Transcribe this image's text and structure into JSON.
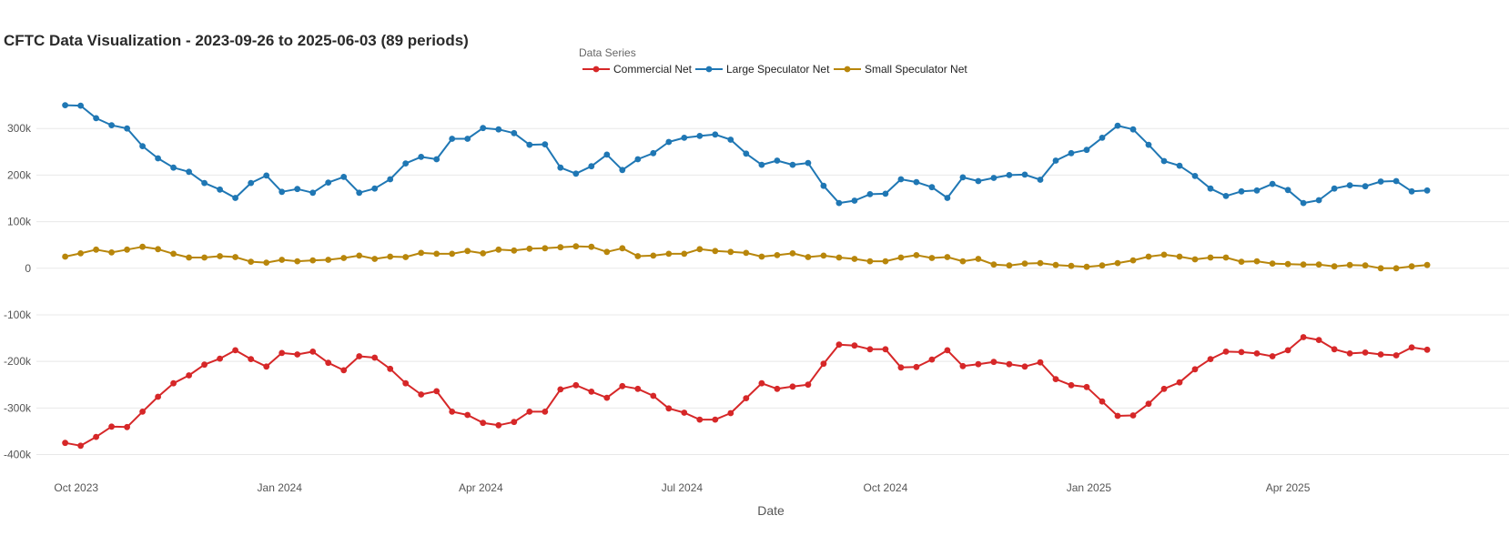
{
  "chart_data": {
    "type": "line",
    "title": "CFTC Data Visualization - 2023-09-26 to 2025-06-03 (89 periods)",
    "xlabel": "Date",
    "ylabel": "",
    "ylim": [
      -440000,
      400000
    ],
    "xlim": [
      "2023-09-13",
      "2025-07-10"
    ],
    "grid": true,
    "legend": {
      "title": "Data Series",
      "placement": "top-center"
    },
    "x_ticks": [
      {
        "date": "2023-10-01",
        "label": "Oct 2023"
      },
      {
        "date": "2024-01-01",
        "label": "Jan 2024"
      },
      {
        "date": "2024-04-01",
        "label": "Apr 2024"
      },
      {
        "date": "2024-07-01",
        "label": "Jul 2024"
      },
      {
        "date": "2024-10-01",
        "label": "Oct 2024"
      },
      {
        "date": "2025-01-01",
        "label": "Jan 2025"
      },
      {
        "date": "2025-04-01",
        "label": "Apr 2025"
      }
    ],
    "y_ticks": [
      {
        "value": 300000,
        "label": "300k"
      },
      {
        "value": 200000,
        "label": "200k"
      },
      {
        "value": 100000,
        "label": "100k"
      },
      {
        "value": 0,
        "label": "0"
      },
      {
        "value": -100000,
        "label": "-100k"
      },
      {
        "value": -200000,
        "label": "-200k"
      },
      {
        "value": -300000,
        "label": "-300k"
      },
      {
        "value": -400000,
        "label": "-400k"
      }
    ],
    "x_start": "2023-09-26",
    "x_interval_days": 7,
    "series": [
      {
        "name": "Commercial Net",
        "color": "#d62728",
        "values": [
          -375000,
          -381000,
          -362000,
          -340000,
          -341000,
          -308000,
          -276000,
          -247000,
          -230000,
          -207000,
          -194000,
          -176000,
          -195000,
          -211000,
          -182000,
          -185000,
          -179000,
          -203000,
          -219000,
          -189000,
          -192000,
          -216000,
          -247000,
          -271000,
          -264000,
          -308000,
          -315000,
          -332000,
          -337000,
          -330000,
          -308000,
          -308000,
          -260000,
          -251000,
          -265000,
          -278000,
          -253000,
          -259000,
          -274000,
          -301000,
          -310000,
          -325000,
          -325000,
          -311000,
          -279000,
          -247000,
          -259000,
          -254000,
          -250000,
          -205000,
          -164000,
          -166000,
          -174000,
          -174000,
          -213000,
          -212000,
          -196000,
          -176000,
          -210000,
          -206000,
          -201000,
          -206000,
          -211000,
          -202000,
          -238000,
          -251000,
          -255000,
          -286000,
          -317000,
          -316000,
          -291000,
          -259000,
          -245000,
          -217000,
          -195000,
          -179000,
          -180000,
          -183000,
          -189000,
          -176000,
          -148000,
          -154000,
          -174000,
          -183000,
          -181000,
          -185000,
          -187000,
          -170000,
          -175000
        ]
      },
      {
        "name": "Large Speculator Net",
        "color": "#1f77b4",
        "values": [
          350000,
          349000,
          322000,
          307000,
          300000,
          262000,
          236000,
          216000,
          207000,
          183000,
          169000,
          151000,
          183000,
          199000,
          164000,
          170000,
          162000,
          184000,
          196000,
          162000,
          171000,
          191000,
          225000,
          239000,
          234000,
          278000,
          278000,
          301000,
          298000,
          290000,
          265000,
          266000,
          216000,
          203000,
          219000,
          244000,
          211000,
          234000,
          247000,
          271000,
          280000,
          284000,
          287000,
          276000,
          246000,
          222000,
          231000,
          222000,
          226000,
          177000,
          140000,
          145000,
          159000,
          160000,
          191000,
          185000,
          174000,
          151000,
          195000,
          187000,
          194000,
          200000,
          201000,
          190000,
          231000,
          247000,
          254000,
          280000,
          306000,
          298000,
          265000,
          230000,
          220000,
          198000,
          171000,
          155000,
          165000,
          167000,
          181000,
          168000,
          140000,
          146000,
          171000,
          178000,
          176000,
          186000,
          187000,
          165000,
          167000
        ]
      },
      {
        "name": "Small Speculator Net",
        "color": "#b8860b",
        "values": [
          25000,
          32000,
          40000,
          34000,
          40000,
          46000,
          41000,
          31000,
          23000,
          23000,
          26000,
          24000,
          14000,
          12000,
          18000,
          15000,
          17000,
          18000,
          22000,
          27000,
          20000,
          25000,
          24000,
          33000,
          31000,
          31000,
          37000,
          32000,
          40000,
          38000,
          42000,
          43000,
          45000,
          47000,
          46000,
          35000,
          43000,
          26000,
          27000,
          31000,
          31000,
          41000,
          37000,
          35000,
          33000,
          25000,
          28000,
          32000,
          24000,
          27000,
          23000,
          20000,
          15000,
          15000,
          23000,
          28000,
          22000,
          24000,
          15000,
          20000,
          8000,
          6000,
          10000,
          11000,
          7000,
          5000,
          3000,
          6000,
          11000,
          17000,
          25000,
          29000,
          25000,
          19000,
          23000,
          23000,
          14000,
          15000,
          10000,
          9000,
          8000,
          8000,
          4000,
          7000,
          6000,
          0,
          0,
          4000,
          7000
        ]
      }
    ]
  }
}
